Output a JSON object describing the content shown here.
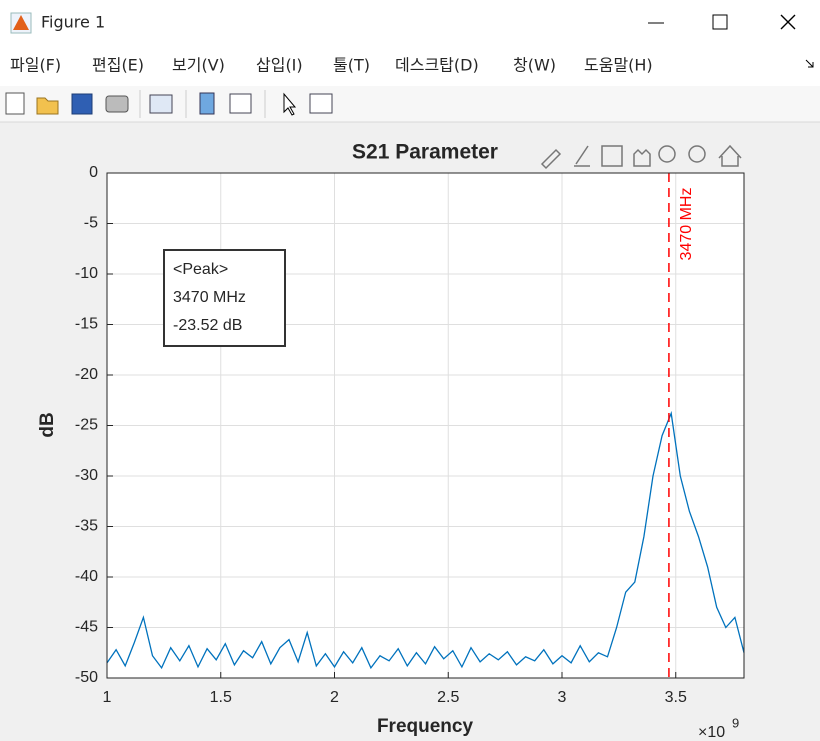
{
  "window": {
    "title": "Figure 1",
    "menu": [
      "파일(F)",
      "편집(E)",
      "보기(V)",
      "삽입(I)",
      "툴(T)",
      "데스크탑(D)",
      "창(W)",
      "도움말(H)"
    ]
  },
  "chart_data": {
    "type": "line",
    "title": "S21 Parameter",
    "x_label": "Frequency",
    "y_label": "dB",
    "x_multiplier": {
      "base": "×10",
      "exponent": "9"
    },
    "x": [
      1.0,
      1.04,
      1.08,
      1.12,
      1.16,
      1.2,
      1.24,
      1.28,
      1.32,
      1.36,
      1.4,
      1.44,
      1.48,
      1.52,
      1.56,
      1.6,
      1.64,
      1.68,
      1.72,
      1.76,
      1.8,
      1.84,
      1.88,
      1.92,
      1.96,
      2.0,
      2.04,
      2.08,
      2.12,
      2.16,
      2.2,
      2.24,
      2.28,
      2.32,
      2.36,
      2.4,
      2.44,
      2.48,
      2.52,
      2.56,
      2.6,
      2.64,
      2.68,
      2.72,
      2.76,
      2.8,
      2.84,
      2.88,
      2.92,
      2.96,
      3.0,
      3.04,
      3.08,
      3.12,
      3.16,
      3.2,
      3.24,
      3.28,
      3.32,
      3.36,
      3.4,
      3.44,
      3.48,
      3.52,
      3.56,
      3.6,
      3.64,
      3.68,
      3.72,
      3.76,
      3.8
    ],
    "series": [
      {
        "color": "#0072bd",
        "values": [
          -48.5,
          -47.2,
          -48.8,
          -46.5,
          -44.0,
          -47.8,
          -49.0,
          -47.0,
          -48.3,
          -46.8,
          -48.9,
          -47.1,
          -48.2,
          -46.6,
          -48.7,
          -47.3,
          -48.0,
          -46.4,
          -48.6,
          -47.0,
          -46.2,
          -48.4,
          -45.5,
          -48.8,
          -47.6,
          -48.9,
          -47.4,
          -48.5,
          -47.0,
          -49.0,
          -47.8,
          -48.3,
          -47.1,
          -48.8,
          -47.5,
          -48.6,
          -46.9,
          -48.1,
          -47.3,
          -48.9,
          -47.0,
          -48.4,
          -47.6,
          -48.2,
          -47.4,
          -48.7,
          -47.9,
          -48.3,
          -47.2,
          -48.6,
          -47.8,
          -48.5,
          -46.8,
          -48.4,
          -47.5,
          -47.9,
          -45.0,
          -41.5,
          -40.5,
          -36.0,
          -30.0,
          -26.0,
          -23.8,
          -30.0,
          -33.5,
          -36.0,
          -39.0,
          -43.0,
          -45.0,
          -44.0,
          -47.5
        ]
      }
    ],
    "xlim": [
      1,
      3.8
    ],
    "ylim": [
      -50,
      0
    ],
    "xticks": [
      1,
      1.5,
      2,
      2.5,
      3,
      3.5
    ],
    "yticks": [
      0,
      -5,
      -10,
      -15,
      -20,
      -25,
      -30,
      -35,
      -40,
      -45,
      -50
    ],
    "grid": true,
    "vline": {
      "x": 3.47,
      "label": "3470 MHz",
      "color": "#ff0000"
    },
    "annotation": {
      "lines": [
        "<Peak>",
        "3470 MHz",
        "-23.52 dB"
      ]
    }
  }
}
